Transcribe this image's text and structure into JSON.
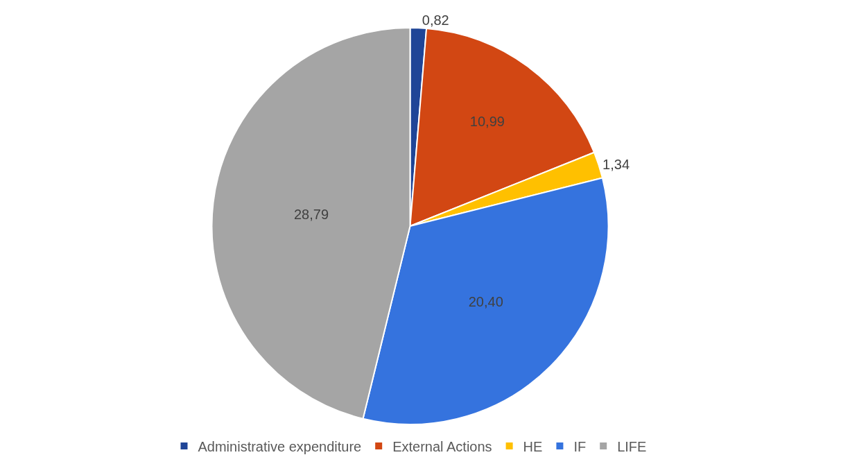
{
  "chart_data": {
    "type": "pie",
    "categories": [
      "Administrative expenditure",
      "External Actions",
      "HE",
      "IF",
      "LIFE"
    ],
    "values": [
      0.82,
      10.99,
      1.34,
      20.4,
      28.79
    ],
    "value_labels": [
      "0,82",
      "10,99",
      "1,34",
      "20,40",
      "28,79"
    ],
    "colors": [
      "#1f4597",
      "#d24713",
      "#ffc000",
      "#3573de",
      "#a5a5a5"
    ],
    "legend": "bottom"
  }
}
